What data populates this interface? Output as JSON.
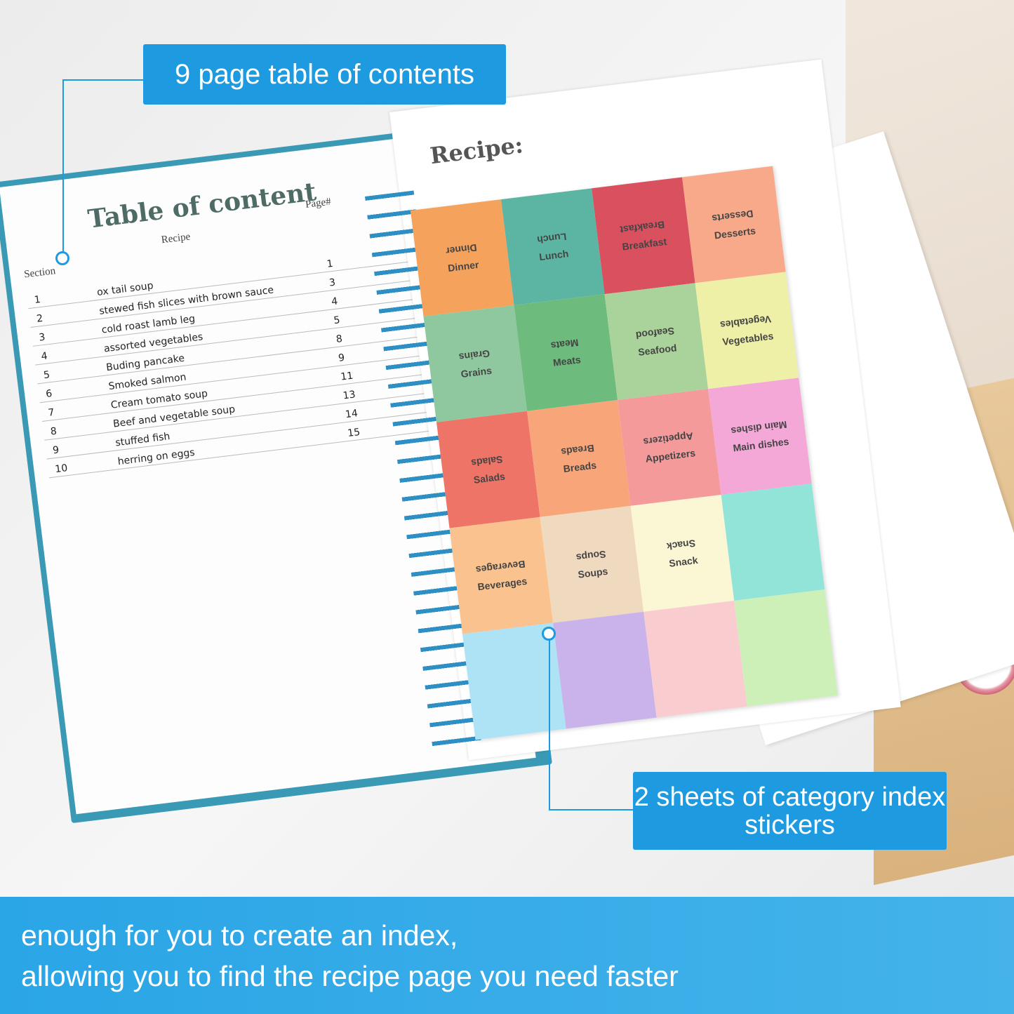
{
  "callouts": {
    "top": "9 page table of contents",
    "bottom": "2 sheets of category index stickers"
  },
  "banner": {
    "line1": "enough for you to create an index,",
    "line2": "allowing you to find the recipe page you need faster"
  },
  "toc": {
    "title": "Table of content",
    "section_header": "Section",
    "recipe_header": "Recipe",
    "page_header": "Page#",
    "rows": [
      {
        "section": "1",
        "recipe": "ox tail soup",
        "page": "1"
      },
      {
        "section": "2",
        "recipe": "stewed fish slices with brown sauce",
        "page": "3"
      },
      {
        "section": "3",
        "recipe": "cold roast lamb leg",
        "page": "4"
      },
      {
        "section": "4",
        "recipe": "assorted vegetables",
        "page": "5"
      },
      {
        "section": "5",
        "recipe": "Buding pancake",
        "page": "8"
      },
      {
        "section": "6",
        "recipe": "Smoked salmon",
        "page": "9"
      },
      {
        "section": "7",
        "recipe": "Cream tomato soup",
        "page": "11"
      },
      {
        "section": "8",
        "recipe": "Beef and vegetable soup",
        "page": "13"
      },
      {
        "section": "9",
        "recipe": "stuffed fish",
        "page": "14"
      },
      {
        "section": "10",
        "recipe": "herring on eggs",
        "page": "15"
      }
    ]
  },
  "recipe_page": {
    "title": "Recipe:"
  },
  "stickers": [
    {
      "label": "Dinner",
      "color": "#f5a25d"
    },
    {
      "label": "Lunch",
      "color": "#5bb5a2"
    },
    {
      "label": "Breakfast",
      "color": "#d9505f"
    },
    {
      "label": "Desserts",
      "color": "#f7a98a"
    },
    {
      "label": "Grains",
      "color": "#8fc79e"
    },
    {
      "label": "Meats",
      "color": "#6dbb7d"
    },
    {
      "label": "Seafood",
      "color": "#a9d39a"
    },
    {
      "label": "Vegetables",
      "color": "#eef0a8"
    },
    {
      "label": "Salads",
      "color": "#ef7468"
    },
    {
      "label": "Breads",
      "color": "#f8a57a"
    },
    {
      "label": "Appetizers",
      "color": "#f49a9a"
    },
    {
      "label": "Main dishes",
      "color": "#f4a8d8"
    },
    {
      "label": "Beverages",
      "color": "#f9c28e"
    },
    {
      "label": "Soups",
      "color": "#efd9bf"
    },
    {
      "label": "Snack",
      "color": "#fbf6d4"
    },
    {
      "label": "",
      "color": "#92e3d8"
    },
    {
      "label": "",
      "color": "#aee2f5"
    },
    {
      "label": "",
      "color": "#c9b3ea"
    },
    {
      "label": "",
      "color": "#f9cdd0"
    },
    {
      "label": "",
      "color": "#cdf0b8"
    }
  ],
  "accent": "#1e9be0"
}
